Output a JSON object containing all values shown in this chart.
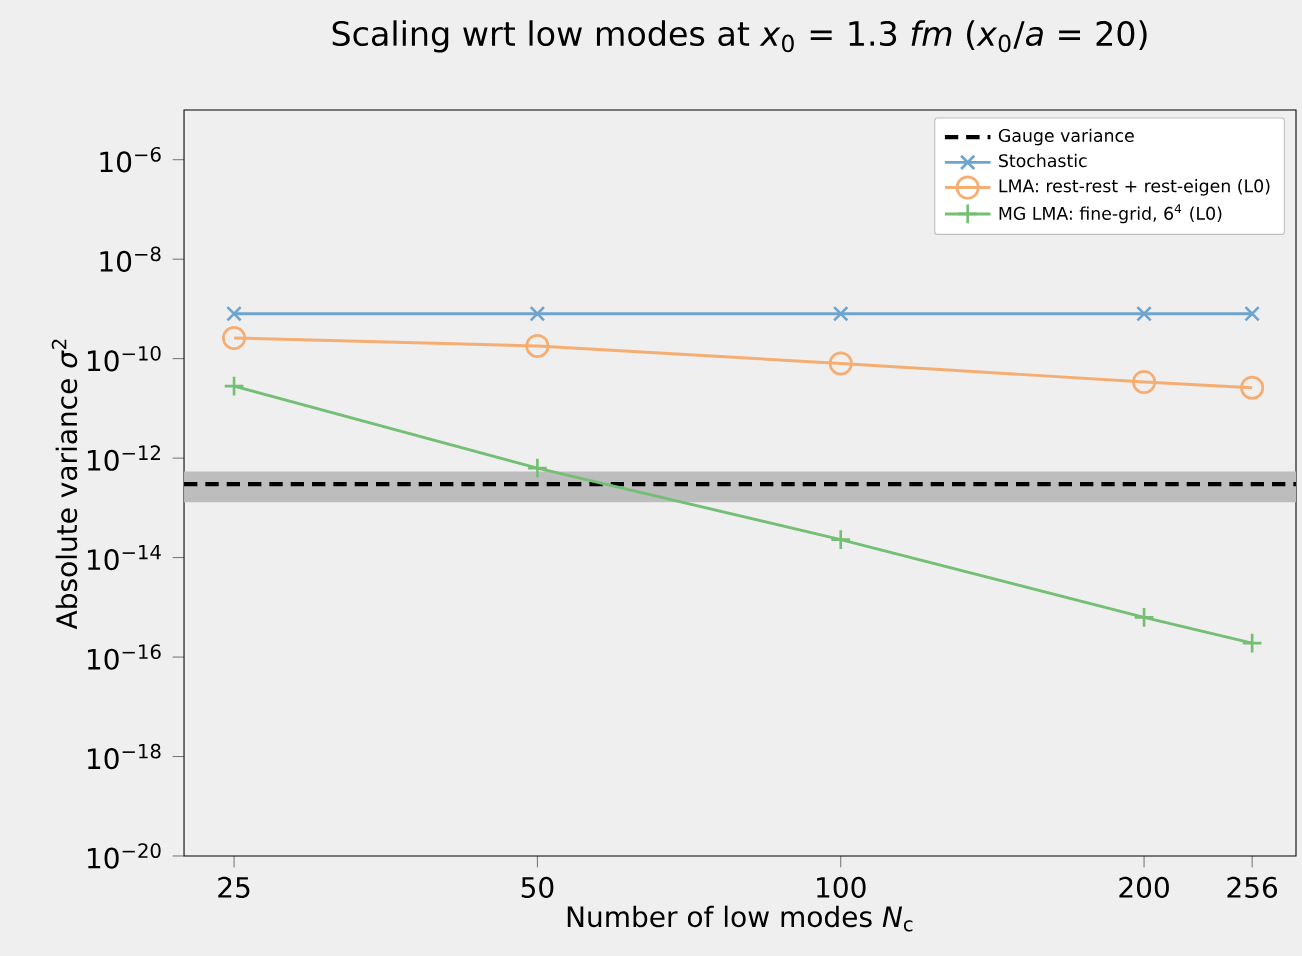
{
  "chart_data": {
    "type": "line",
    "title": "Scaling wrt low modes at *x*$_{0}$ = 1.3 *fm* (*x*$_{0}$/*a* = 20)",
    "xlabel": "Number of low modes *N*$_{c}$",
    "ylabel": "Absolute variance *σ*$^{2}$",
    "x": [
      25,
      50,
      100,
      200,
      256
    ],
    "series": [
      {
        "name": "Stochastic",
        "color": "#6fa4cd",
        "marker": "cross",
        "values": [
          8e-10,
          8e-10,
          8e-10,
          8e-10,
          8e-10
        ]
      },
      {
        "name": "LMA: rest-rest + rest-eigen (L0)",
        "color": "#f6ad72",
        "marker": "circle",
        "values": [
          2.6e-10,
          1.8e-10,
          8e-11,
          3.4e-11,
          2.6e-11
        ]
      },
      {
        "name": "MG LMA: fine-grid, 6$^{4}$ (L0)",
        "color": "#74bf74",
        "marker": "plus",
        "values": [
          2.8e-11,
          6.3e-13,
          2.3e-14,
          6.3e-16,
          1.9e-16
        ]
      }
    ],
    "ref_lines": [
      {
        "axis": "y",
        "value": 3e-13,
        "label": "Gauge variance",
        "color": "#000000",
        "line_style": "dashed"
      }
    ],
    "bands": [
      {
        "axis": "y",
        "from": 1.3e-13,
        "to": 5.4e-13,
        "color": "#bdbdbd"
      }
    ],
    "log": "xy",
    "xlim": [
      22.3,
      283
    ],
    "ylim": [
      1e-20,
      1e-05
    ],
    "xticks": [
      25,
      50,
      100,
      200,
      256
    ],
    "yticks": [
      {
        "value": 1e-20,
        "label": "10$^{−20}$"
      },
      {
        "value": 1e-18,
        "label": "10$^{−18}$"
      },
      {
        "value": 1e-16,
        "label": "10$^{−16}$"
      },
      {
        "value": 1e-14,
        "label": "10$^{−14}$"
      },
      {
        "value": 1e-12,
        "label": "10$^{−12}$"
      },
      {
        "value": 1e-10,
        "label": "10$^{−10}$"
      },
      {
        "value": 1e-08,
        "label": "10$^{−8}$"
      },
      {
        "value": 1e-06,
        "label": "10$^{−6}$"
      }
    ],
    "grid": false,
    "legend": "top right",
    "line_style": "solid"
  }
}
